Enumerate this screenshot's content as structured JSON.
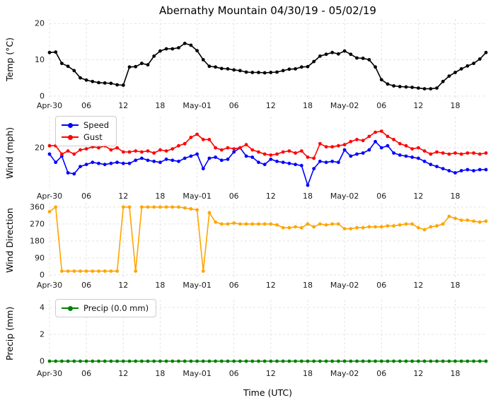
{
  "title": "Abernathy Mountain 04/30/19 - 05/02/19",
  "xlabel": "Time (UTC)",
  "x_axis": {
    "tick_positions": [
      0,
      6,
      12,
      18,
      24,
      30,
      36,
      42,
      48,
      54,
      60,
      66
    ],
    "tick_labels": [
      "Apr-30",
      "06",
      "12",
      "18",
      "May-01",
      "06",
      "12",
      "18",
      "May-02",
      "06",
      "12",
      "18"
    ],
    "points_per_series": 72,
    "step_hours": 1
  },
  "chart_data": [
    {
      "type": "line",
      "ylabel": "Temp (°C)",
      "ylim": [
        -0.8,
        21.2
      ],
      "yticks": [
        0,
        10,
        20
      ],
      "grid": true,
      "series": [
        {
          "name": "Temp",
          "color": "#000000",
          "marker": "circle",
          "values": [
            12,
            12.1,
            9,
            8.2,
            7,
            5,
            4.4,
            4,
            3.7,
            3.6,
            3.5,
            3.1,
            3,
            8,
            8.1,
            9,
            8.6,
            11,
            12.4,
            13,
            13,
            13.3,
            14.5,
            14,
            12.5,
            10,
            8.2,
            8,
            7.6,
            7.5,
            7.2,
            7,
            6.6,
            6.5,
            6.5,
            6.4,
            6.5,
            6.6,
            7,
            7.4,
            7.5,
            8,
            8.1,
            9.5,
            11,
            11.5,
            12,
            11.6,
            12.4,
            11.5,
            10.5,
            10.4,
            10,
            8,
            4.5,
            3.3,
            2.8,
            2.6,
            2.5,
            2.4,
            2.2,
            2,
            2,
            2.2,
            4,
            5.5,
            6.5,
            7.5,
            8.3,
            9,
            10.2,
            12
          ]
        }
      ]
    },
    {
      "type": "line",
      "ylabel": "Wind (mph)",
      "ylim": [
        0,
        35
      ],
      "yticks": [
        20
      ],
      "grid": true,
      "legend_position": "upper left",
      "series": [
        {
          "name": "Speed",
          "color": "#0000ff",
          "marker": "circle",
          "values": [
            17,
            13,
            16,
            8,
            7.5,
            11,
            12,
            13,
            12.5,
            12,
            12.5,
            13,
            12.5,
            12.5,
            14,
            15,
            14,
            13.5,
            13,
            14.5,
            14,
            13.5,
            15,
            16,
            17,
            10,
            15,
            15.5,
            14,
            14.5,
            18,
            20,
            16,
            15.5,
            13,
            12,
            14.5,
            13.5,
            13,
            12.5,
            12,
            11.5,
            2,
            10,
            13.5,
            13,
            13.5,
            13,
            19,
            16,
            17,
            17.5,
            19,
            23,
            20,
            21,
            17.5,
            16.5,
            16,
            15.5,
            15,
            13.5,
            12,
            11,
            10,
            9,
            8,
            9,
            9.5,
            9,
            9.5,
            9.5
          ]
        },
        {
          "name": "Gust",
          "color": "#ff0000",
          "marker": "circle",
          "values": [
            21,
            21,
            17,
            18.5,
            17,
            19,
            19.5,
            20.5,
            20,
            21,
            19,
            20,
            18,
            18,
            18.5,
            18,
            18.5,
            17.5,
            19,
            18.5,
            19.5,
            21,
            22,
            25,
            26.5,
            24,
            24,
            20,
            19,
            20,
            19.5,
            20,
            21.5,
            19,
            18,
            17,
            16.5,
            17,
            18,
            18.5,
            17.5,
            18.5,
            15.5,
            15,
            22,
            20.5,
            20.5,
            21,
            21.5,
            23,
            24,
            23.5,
            25.5,
            27.5,
            28,
            25.5,
            24,
            22,
            21,
            19.5,
            20,
            18.5,
            17,
            18,
            17.5,
            17,
            17.5,
            17,
            17.5,
            17.5,
            17,
            17.5
          ]
        }
      ]
    },
    {
      "type": "line",
      "ylabel": "Wind Direction",
      "ylim": [
        -19,
        382
      ],
      "yticks": [
        0,
        90,
        180,
        270,
        360
      ],
      "grid": true,
      "series": [
        {
          "name": "Direction",
          "color": "#ffa500",
          "marker": "circle",
          "values": [
            335,
            360,
            20,
            20,
            20,
            20,
            20,
            20,
            20,
            20,
            20,
            20,
            360,
            360,
            20,
            360,
            360,
            360,
            360,
            360,
            360,
            360,
            355,
            350,
            345,
            20,
            330,
            280,
            270,
            270,
            275,
            270,
            270,
            270,
            270,
            270,
            270,
            265,
            250,
            250,
            255,
            250,
            270,
            255,
            270,
            265,
            270,
            270,
            245,
            245,
            250,
            250,
            255,
            255,
            255,
            260,
            260,
            265,
            270,
            270,
            250,
            240,
            255,
            260,
            270,
            310,
            300,
            290,
            290,
            285,
            280,
            285
          ]
        }
      ]
    },
    {
      "type": "line",
      "ylabel": "Precip (mm)",
      "ylim": [
        -0.42,
        4.58
      ],
      "yticks": [
        0,
        2,
        4
      ],
      "grid": true,
      "legend_position": "upper left",
      "series": [
        {
          "name": "Precip (0.0 mm)",
          "color": "#008000",
          "marker": "circle",
          "values": [
            0,
            0,
            0,
            0,
            0,
            0,
            0,
            0,
            0,
            0,
            0,
            0,
            0,
            0,
            0,
            0,
            0,
            0,
            0,
            0,
            0,
            0,
            0,
            0,
            0,
            0,
            0,
            0,
            0,
            0,
            0,
            0,
            0,
            0,
            0,
            0,
            0,
            0,
            0,
            0,
            0,
            0,
            0,
            0,
            0,
            0,
            0,
            0,
            0,
            0,
            0,
            0,
            0,
            0,
            0,
            0,
            0,
            0,
            0,
            0,
            0,
            0,
            0,
            0,
            0,
            0,
            0,
            0,
            0,
            0,
            0,
            0
          ]
        }
      ]
    }
  ]
}
